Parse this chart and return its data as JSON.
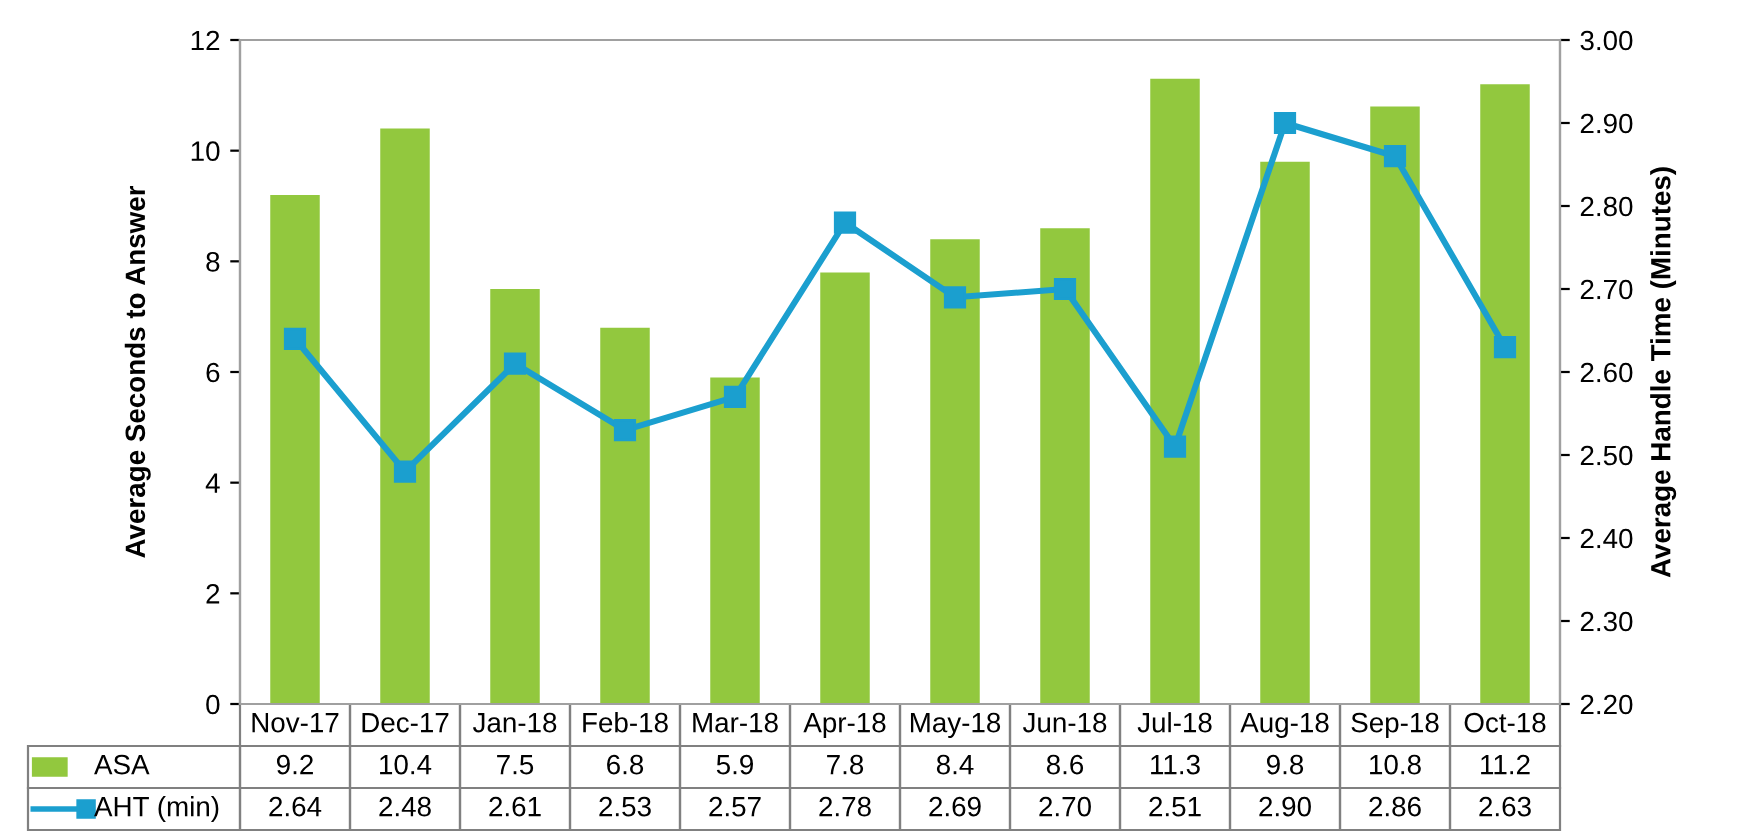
{
  "chart_data": {
    "type": "bar",
    "categories": [
      "Nov-17",
      "Dec-17",
      "Jan-18",
      "Feb-18",
      "Mar-18",
      "Apr-18",
      "May-18",
      "Jun-18",
      "Jul-18",
      "Aug-18",
      "Sep-18",
      "Oct-18"
    ],
    "series": [
      {
        "name": "ASA",
        "color": "#92c83e",
        "values": [
          9.2,
          10.4,
          7.5,
          6.8,
          5.9,
          7.8,
          8.4,
          8.6,
          11.3,
          9.8,
          10.8,
          11.2
        ],
        "value_labels": [
          "9.2",
          "10.4",
          "7.5",
          "6.8",
          "5.9",
          "7.8",
          "8.4",
          "8.6",
          "11.3",
          "9.8",
          "10.8",
          "11.2"
        ]
      },
      {
        "name": "AHT (min)",
        "type": "line",
        "axis": "y2",
        "color": "#1b9fcf",
        "marker": "square",
        "values": [
          2.64,
          2.48,
          2.61,
          2.53,
          2.57,
          2.78,
          2.69,
          2.7,
          2.51,
          2.9,
          2.86,
          2.63
        ],
        "value_labels": [
          "2.64",
          "2.48",
          "2.61",
          "2.53",
          "2.57",
          "2.78",
          "2.69",
          "2.70",
          "2.51",
          "2.90",
          "2.86",
          "2.63"
        ]
      }
    ],
    "ylabel": "Average Seconds to Answer",
    "y2label": "Average Handle Time (Minutes)",
    "ylim": [
      0,
      12
    ],
    "yticks": [
      0,
      2,
      4,
      6,
      8,
      10,
      12
    ],
    "y2lim": [
      2.2,
      3.0
    ],
    "y2ticks": [
      {
        "value": 2.2,
        "label": "2.20"
      },
      {
        "value": 2.3,
        "label": "2.30"
      },
      {
        "value": 2.4,
        "label": "2.40"
      },
      {
        "value": 2.5,
        "label": "2.50"
      },
      {
        "value": 2.6,
        "label": "2.60"
      },
      {
        "value": 2.7,
        "label": "2.70"
      },
      {
        "value": 2.8,
        "label": "2.80"
      },
      {
        "value": 2.9,
        "label": "2.90"
      },
      {
        "value": 3.0,
        "label": "3.00"
      }
    ],
    "legend": "bottom",
    "grid": false
  }
}
